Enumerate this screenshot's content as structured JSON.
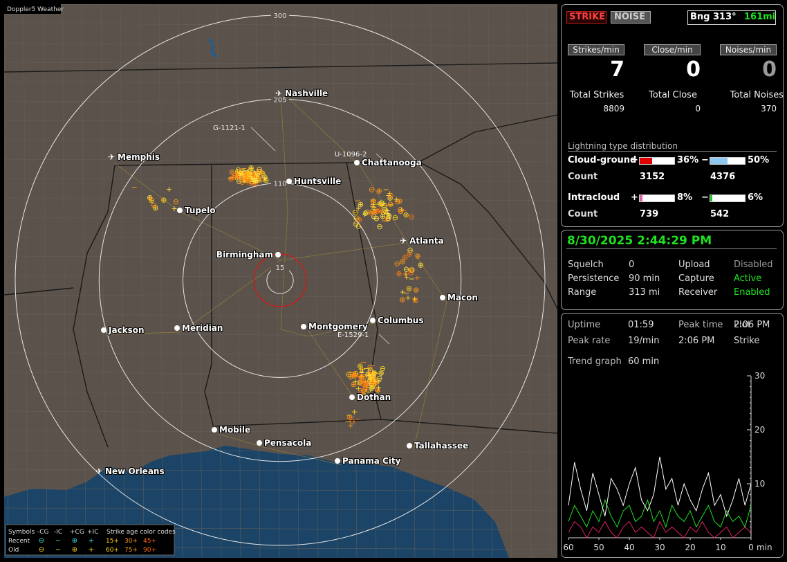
{
  "map": {
    "title": "Doppler5 Weather",
    "rings": [
      300,
      205,
      110,
      15
    ],
    "cities": [
      {
        "name": "Nashville",
        "airport": true
      },
      {
        "name": "Memphis",
        "airport": true
      },
      {
        "name": "Chattanooga",
        "airport": false
      },
      {
        "name": "Huntsville",
        "airport": false
      },
      {
        "name": "Tupelo",
        "airport": false
      },
      {
        "name": "Atlanta",
        "airport": true
      },
      {
        "name": "Birmingham",
        "airport": false
      },
      {
        "name": "Macon",
        "airport": false
      },
      {
        "name": "Jackson",
        "airport": false
      },
      {
        "name": "Meridian",
        "airport": false
      },
      {
        "name": "Montgomery",
        "airport": false
      },
      {
        "name": "Columbus",
        "airport": false
      },
      {
        "name": "Dothan",
        "airport": false
      },
      {
        "name": "Mobile",
        "airport": false
      },
      {
        "name": "Pensacola",
        "airport": false
      },
      {
        "name": "Tallahassee",
        "airport": false
      },
      {
        "name": "Panama City",
        "airport": false
      },
      {
        "name": "New Orleans",
        "airport": true
      }
    ],
    "storms": [
      "G-1121-1",
      "U-1096-2",
      "E-1529-1"
    ],
    "legend": {
      "header": [
        "Symbols",
        "-CG",
        "-IC",
        "+CG",
        "+IC",
        "Strike age color codes"
      ],
      "rows": [
        {
          "label": "Recent",
          "ages": [
            "15+",
            "30+",
            "45+"
          ]
        },
        {
          "label": "Old",
          "ages": [
            "60+",
            "75+",
            "90+"
          ]
        }
      ]
    }
  },
  "status": {
    "buttons": [
      "STRIKE",
      "NOISE"
    ],
    "bearing": "Bng 313°",
    "distance": "161mi",
    "rates": [
      {
        "label": "Strikes/min",
        "value": 7
      },
      {
        "label": "Close/min",
        "value": 0
      },
      {
        "label": "Noises/min",
        "value": 0
      }
    ],
    "totals": [
      {
        "label": "Total Strikes",
        "value": 8809
      },
      {
        "label": "Total Close",
        "value": 0
      },
      {
        "label": "Total Noises",
        "value": 370
      }
    ],
    "distribution": {
      "title": "Lightning type distribution",
      "rows": [
        {
          "label": "Cloud-ground",
          "count_label": "Count",
          "plus": {
            "sign": "+",
            "value": 36,
            "value_label": "36%",
            "count": 3152,
            "color": "#e00000"
          },
          "minus": {
            "sign": "−",
            "value": 50,
            "value_label": "50%",
            "count": 4376,
            "color": "#8cc8f0"
          }
        },
        {
          "label": "Intracloud",
          "count_label": "Count",
          "plus": {
            "sign": "+",
            "value": 8,
            "value_label": "8%",
            "count": 739,
            "color": "#e060a8"
          },
          "minus": {
            "sign": "−",
            "value": 6,
            "value_label": "6%",
            "count": 542,
            "color": "#20c020"
          }
        }
      ]
    }
  },
  "info": {
    "datetime": "8/30/2025 2:44:29 PM",
    "left": [
      {
        "label": "Squelch",
        "value": "0"
      },
      {
        "label": "Persistence",
        "value": "90 min"
      },
      {
        "label": "Range",
        "value": "313 mi"
      }
    ],
    "right": [
      {
        "label": "Upload",
        "value": "Disabled",
        "color": "#9a9a9a"
      },
      {
        "label": "Capture",
        "value": "Active",
        "color": "#20e020"
      },
      {
        "label": "Receiver",
        "value": "Enabled",
        "color": "#20e020"
      }
    ]
  },
  "stats": {
    "rows": [
      [
        {
          "label": "Uptime",
          "value": "01:59"
        },
        {
          "label": "Peak time",
          "value": "2:06 PM"
        },
        {
          "label": "Plot"
        }
      ],
      [
        {
          "label": "Peak rate",
          "value": "19/min"
        },
        {
          "label": "2:06 PM"
        },
        {
          "label": "Strike"
        }
      ]
    ],
    "trend_label": "Trend graph",
    "trend_value": "60 min"
  },
  "chart_data": {
    "type": "line",
    "xlabel": "min",
    "x": [
      60,
      58,
      56,
      54,
      52,
      50,
      48,
      46,
      44,
      42,
      40,
      38,
      36,
      34,
      32,
      30,
      28,
      26,
      24,
      22,
      20,
      18,
      16,
      14,
      12,
      10,
      8,
      6,
      4,
      2,
      0
    ],
    "xlim": [
      60,
      0
    ],
    "xticks": [
      60,
      50,
      40,
      30,
      20,
      10,
      0
    ],
    "ylim": [
      0,
      30
    ],
    "yticks": [
      10,
      20,
      30
    ],
    "series": [
      {
        "color": "#ffffff",
        "values": [
          6,
          14,
          9,
          5,
          12,
          8,
          4,
          11,
          9,
          6,
          10,
          13,
          7,
          5,
          8,
          15,
          9,
          11,
          6,
          10,
          7,
          5,
          9,
          12,
          6,
          8,
          4,
          7,
          11,
          6,
          10
        ]
      },
      {
        "color": "#20e020",
        "values": [
          3,
          6,
          4,
          2,
          5,
          3,
          7,
          4,
          2,
          5,
          6,
          3,
          4,
          7,
          3,
          5,
          2,
          6,
          4,
          3,
          5,
          2,
          4,
          6,
          3,
          2,
          5,
          3,
          4,
          2,
          6
        ]
      },
      {
        "color": "#e02060",
        "values": [
          1,
          3,
          2,
          0,
          2,
          1,
          3,
          1,
          0,
          2,
          3,
          1,
          2,
          1,
          0,
          3,
          1,
          2,
          1,
          0,
          2,
          1,
          3,
          1,
          0,
          1,
          2,
          0,
          1,
          2,
          1
        ]
      }
    ]
  }
}
